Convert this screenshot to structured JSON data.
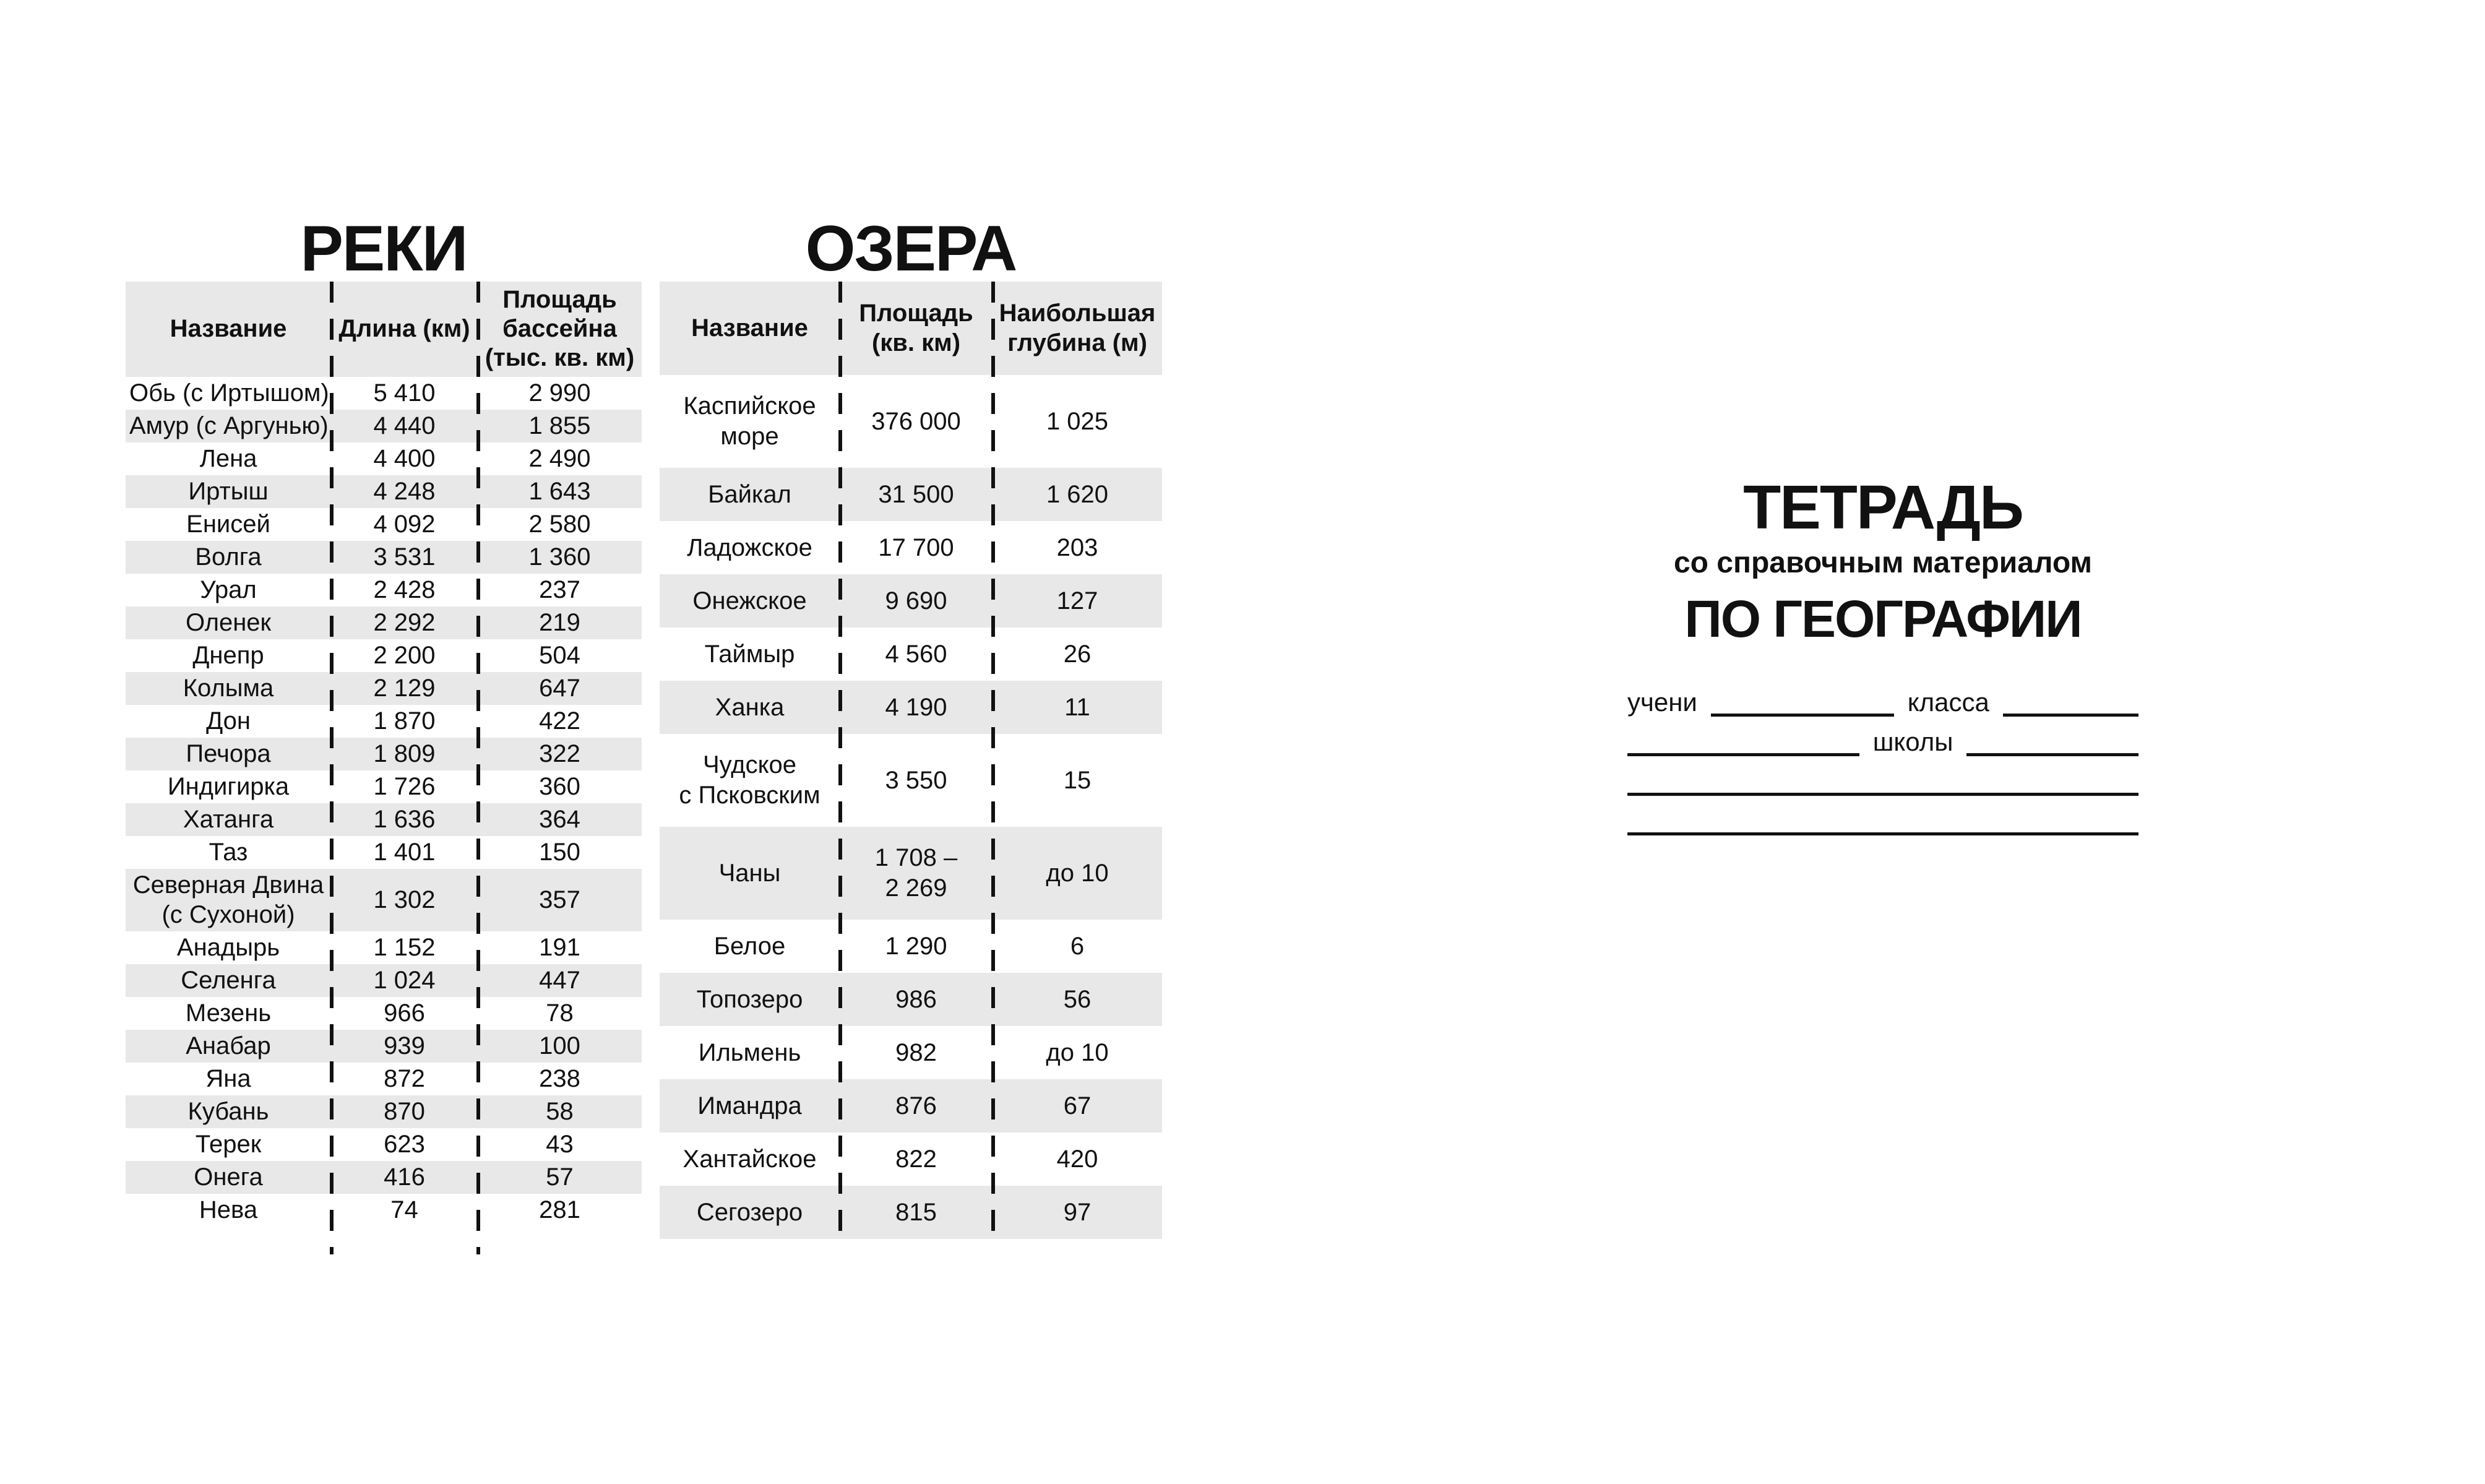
{
  "page": {
    "background": "#ffffff",
    "text_color": "#111111",
    "row_shade_color": "#e8e8e8"
  },
  "rivers_table": {
    "title": "РЕКИ",
    "columns": [
      "Название",
      "Длина (км)",
      "Площадь бассейна (тыс. кв. км)"
    ],
    "rows": [
      {
        "cells": [
          "Обь (с Иртышом)",
          "5 410",
          "2 990"
        ]
      },
      {
        "cells": [
          "Амур (с Аргунью)",
          "4 440",
          "1 855"
        ]
      },
      {
        "cells": [
          "Лена",
          "4 400",
          "2 490"
        ]
      },
      {
        "cells": [
          "Иртыш",
          "4 248",
          "1 643"
        ]
      },
      {
        "cells": [
          "Енисей",
          "4 092",
          "2 580"
        ]
      },
      {
        "cells": [
          "Волга",
          "3 531",
          "1 360"
        ]
      },
      {
        "cells": [
          "Урал",
          "2 428",
          "237"
        ]
      },
      {
        "cells": [
          "Оленек",
          "2 292",
          "219"
        ]
      },
      {
        "cells": [
          "Днепр",
          "2 200",
          "504"
        ]
      },
      {
        "cells": [
          "Колыма",
          "2 129",
          "647"
        ]
      },
      {
        "cells": [
          "Дон",
          "1 870",
          "422"
        ]
      },
      {
        "cells": [
          "Печора",
          "1 809",
          "322"
        ]
      },
      {
        "cells": [
          "Индигирка",
          "1 726",
          "360"
        ]
      },
      {
        "cells": [
          "Хатанга",
          "1 636",
          "364"
        ]
      },
      {
        "cells": [
          "Таз",
          "1 401",
          "150"
        ]
      },
      {
        "cells": [
          "Северная Двина (с Сухоной)",
          "1 302",
          "357"
        ]
      },
      {
        "cells": [
          "Анадырь",
          "1 152",
          "191"
        ]
      },
      {
        "cells": [
          "Селенга",
          "1 024",
          "447"
        ]
      },
      {
        "cells": [
          "Мезень",
          "966",
          "78"
        ]
      },
      {
        "cells": [
          "Анабар",
          "939",
          "100"
        ]
      },
      {
        "cells": [
          "Яна",
          "872",
          "238"
        ]
      },
      {
        "cells": [
          "Кубань",
          "870",
          "58"
        ]
      },
      {
        "cells": [
          "Терек",
          "623",
          "43"
        ]
      },
      {
        "cells": [
          "Онега",
          "416",
          "57"
        ]
      },
      {
        "cells": [
          "Нева",
          "74",
          "281"
        ]
      }
    ]
  },
  "lakes_table": {
    "title": "ОЗЕРА",
    "columns": [
      "Название",
      "Площадь (кв. км)",
      "Наибольшая глубина (м)"
    ],
    "rows": [
      {
        "cells": [
          "Каспийское море",
          "376 000",
          "1 025"
        ],
        "tall": true
      },
      {
        "cells": [
          "Байкал",
          "31 500",
          "1 620"
        ]
      },
      {
        "cells": [
          "Ладожское",
          "17 700",
          "203"
        ]
      },
      {
        "cells": [
          "Онежское",
          "9 690",
          "127"
        ]
      },
      {
        "cells": [
          "Таймыр",
          "4 560",
          "26"
        ]
      },
      {
        "cells": [
          "Ханка",
          "4 190",
          "11"
        ]
      },
      {
        "cells": [
          "Чудское с Псковским",
          "3 550",
          "15"
        ],
        "tall": true
      },
      {
        "cells": [
          "Чаны",
          "1 708 – 2 269",
          "до 10"
        ],
        "tall": true
      },
      {
        "cells": [
          "Белое",
          "1 290",
          "6"
        ]
      },
      {
        "cells": [
          "Топозеро",
          "986",
          "56"
        ]
      },
      {
        "cells": [
          "Ильмень",
          "982",
          "до 10"
        ]
      },
      {
        "cells": [
          "Имандра",
          "876",
          "67"
        ]
      },
      {
        "cells": [
          "Хантайское",
          "822",
          "420"
        ]
      },
      {
        "cells": [
          "Сегозеро",
          "815",
          "97"
        ]
      }
    ]
  },
  "cover": {
    "title": "ТЕТРАДЬ",
    "subtitle": "со справочным материалом",
    "subject": "ПО ГЕОГРАФИИ",
    "student_label": "учени",
    "class_label": "класса",
    "school_label": "школы"
  }
}
